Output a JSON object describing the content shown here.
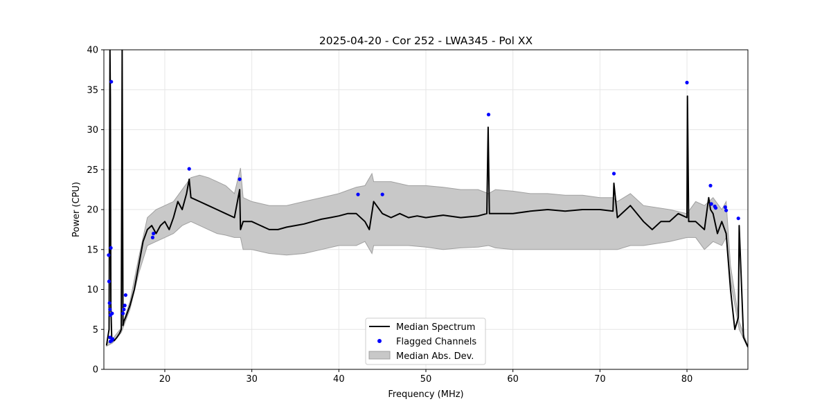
{
  "chart_data": {
    "type": "line",
    "title": "2025-04-20 - Cor 252 - LWA345 - Pol XX",
    "xlabel": "Frequency (MHz)",
    "ylabel": "Power (CPU)",
    "xlim": [
      13,
      87
    ],
    "ylim": [
      0,
      40
    ],
    "xticks": [
      20,
      30,
      40,
      50,
      60,
      70,
      80
    ],
    "yticks": [
      0,
      5,
      10,
      15,
      20,
      25,
      30,
      35,
      40
    ],
    "grid": true,
    "legend_position": "lower-center",
    "legend": [
      "Median Spectrum",
      "Flagged Channels",
      "Median Abs. Dev."
    ],
    "colors": {
      "median": "#000000",
      "flagged": "#0000ff",
      "mad_fill": "#c8c8c8",
      "mad_edge": "#a0a0a0"
    },
    "median_spectrum": {
      "x": [
        13.3,
        13.6,
        13.7,
        13.75,
        13.8,
        13.9,
        14.0,
        14.2,
        14.5,
        14.8,
        15.0,
        15.1,
        15.2,
        15.3,
        15.5,
        16.0,
        16.5,
        17.0,
        17.5,
        18.0,
        18.5,
        19.0,
        19.5,
        20.0,
        20.5,
        21.0,
        21.5,
        22.0,
        22.5,
        22.8,
        23.0,
        24.0,
        25.0,
        26.0,
        27.0,
        28.0,
        28.6,
        28.7,
        29.0,
        30.0,
        31.0,
        32.0,
        33.0,
        34.0,
        35.0,
        36.0,
        37.0,
        38.0,
        39.0,
        40.0,
        41.0,
        42.0,
        43.0,
        43.5,
        44.0,
        45.0,
        46.0,
        47.0,
        48.0,
        49.0,
        50.0,
        52.0,
        54.0,
        56.0,
        57.0,
        57.15,
        57.3,
        58.0,
        60.0,
        62.0,
        64.0,
        66.0,
        68.0,
        70.0,
        71.5,
        71.6,
        72.0,
        73.5,
        75.0,
        76.0,
        77.0,
        78.0,
        79.0,
        80.0,
        80.05,
        80.2,
        81.0,
        82.0,
        82.5,
        82.7,
        83.0,
        83.5,
        84.0,
        84.5,
        85.0,
        85.5,
        85.9,
        86.0,
        86.5,
        87.0
      ],
      "y": [
        3.0,
        5.0,
        40.0,
        34.0,
        8.0,
        4.0,
        3.6,
        3.6,
        4.0,
        4.5,
        5.0,
        40.0,
        5.5,
        6.0,
        6.5,
        8.0,
        10.0,
        13.0,
        16.0,
        17.5,
        18.0,
        17.0,
        18.0,
        18.5,
        17.5,
        19.0,
        21.0,
        20.0,
        22.0,
        23.8,
        21.5,
        21.0,
        20.5,
        20.0,
        19.5,
        19.0,
        22.5,
        17.5,
        18.5,
        18.5,
        18.0,
        17.5,
        17.5,
        17.8,
        18.0,
        18.2,
        18.5,
        18.8,
        19.0,
        19.2,
        19.5,
        19.5,
        18.5,
        17.5,
        21.0,
        19.5,
        19.0,
        19.5,
        19.0,
        19.2,
        19.0,
        19.3,
        19.0,
        19.2,
        19.5,
        30.3,
        19.5,
        19.5,
        19.5,
        19.8,
        20.0,
        19.8,
        20.0,
        20.0,
        19.8,
        23.3,
        19.0,
        20.5,
        18.5,
        17.5,
        18.5,
        18.5,
        19.5,
        19.0,
        34.2,
        18.5,
        18.5,
        17.5,
        21.5,
        20.0,
        19.5,
        17.0,
        18.5,
        17.0,
        10.0,
        5.0,
        6.5,
        18.0,
        4.0,
        2.8
      ]
    },
    "median_abs_dev": {
      "x": [
        13.3,
        14.0,
        15.0,
        16.0,
        17.0,
        18.0,
        19.0,
        20.0,
        21.0,
        22.0,
        23.0,
        24.0,
        25.0,
        26.0,
        27.0,
        28.0,
        28.7,
        29.0,
        30.0,
        32.0,
        34.0,
        36.0,
        38.0,
        40.0,
        42.0,
        43.0,
        43.8,
        44.0,
        46.0,
        48.0,
        50.0,
        52.0,
        54.0,
        56.0,
        57.2,
        58.0,
        60.0,
        62.0,
        64.0,
        66.0,
        68.0,
        70.0,
        71.5,
        72.0,
        73.5,
        75.0,
        78.0,
        80.0,
        81.0,
        82.0,
        83.0,
        84.0,
        84.5,
        85.0,
        86.0,
        87.0
      ],
      "upper": [
        3.2,
        3.8,
        5.2,
        8.5,
        14.0,
        19.0,
        20.0,
        20.5,
        21.0,
        22.5,
        24.0,
        24.3,
        24.0,
        23.5,
        23.0,
        22.0,
        25.2,
        21.5,
        21.0,
        20.5,
        20.5,
        21.0,
        21.5,
        22.0,
        22.8,
        23.0,
        24.5,
        23.5,
        23.5,
        23.0,
        23.0,
        22.8,
        22.5,
        22.5,
        22.0,
        22.5,
        22.3,
        22.0,
        22.0,
        21.8,
        21.8,
        21.5,
        21.5,
        21.0,
        22.0,
        20.5,
        20.0,
        19.5,
        21.0,
        20.5,
        21.5,
        20.0,
        21.0,
        13.0,
        6.0,
        2.9
      ],
      "lower": [
        2.9,
        3.3,
        4.6,
        7.5,
        12.0,
        15.5,
        16.0,
        16.5,
        17.0,
        18.0,
        18.5,
        18.0,
        17.5,
        17.0,
        16.8,
        16.5,
        16.5,
        15.0,
        15.0,
        14.5,
        14.3,
        14.5,
        15.0,
        15.5,
        15.5,
        16.0,
        14.5,
        15.5,
        15.5,
        15.5,
        15.3,
        15.0,
        15.2,
        15.3,
        15.5,
        15.2,
        15.0,
        15.0,
        15.0,
        15.0,
        15.0,
        15.0,
        15.0,
        15.0,
        15.5,
        15.5,
        16.0,
        16.5,
        16.5,
        15.0,
        16.0,
        15.5,
        16.5,
        11.0,
        5.0,
        2.7
      ]
    },
    "flagged_channels": {
      "x": [
        13.55,
        13.6,
        13.65,
        13.7,
        13.75,
        13.8,
        13.85,
        13.9,
        13.95,
        14.0,
        13.7,
        13.75,
        15.2,
        15.3,
        15.4,
        15.5,
        18.6,
        18.7,
        22.8,
        28.6,
        42.2,
        45.0,
        57.2,
        71.6,
        80.0,
        82.7,
        82.8,
        83.2,
        83.3,
        84.4,
        84.5,
        85.9
      ],
      "y": [
        14.3,
        11.0,
        8.3,
        7.5,
        6.8,
        15.2,
        36.0,
        3.6,
        7.0,
        3.8,
        4.0,
        3.5,
        7.0,
        7.5,
        8.0,
        9.3,
        16.5,
        17.0,
        25.1,
        23.8,
        21.9,
        21.9,
        31.9,
        24.5,
        35.9,
        23.0,
        20.7,
        20.4,
        20.2,
        20.3,
        19.9,
        18.9
      ]
    }
  }
}
